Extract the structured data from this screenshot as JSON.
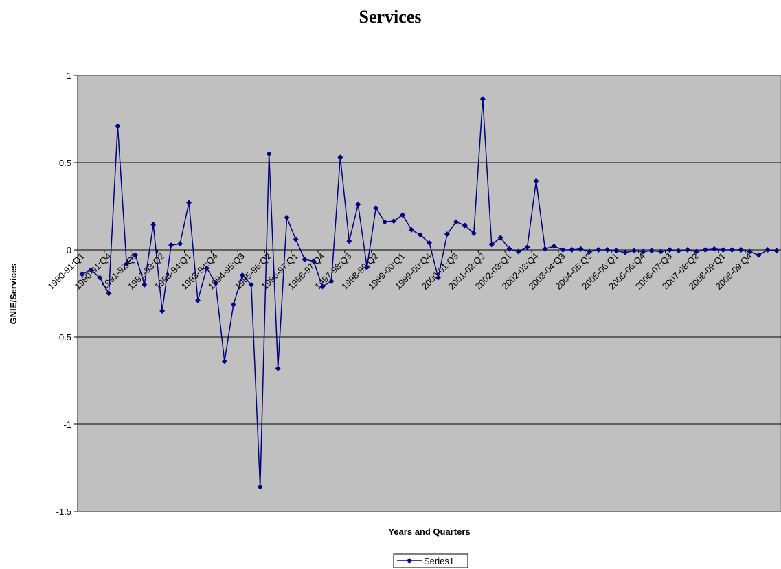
{
  "chart_data": {
    "type": "line",
    "title": "Services",
    "x_label": "Years and Quarters",
    "y_label": "GNIE/Services",
    "categories": [
      "1990-91:Q1",
      null,
      null,
      "1990-91:Q4",
      null,
      null,
      "1991-92:Q3",
      null,
      null,
      "1992-93:Q2",
      null,
      null,
      "1993-94:Q1",
      null,
      null,
      "1993-94:Q4",
      null,
      null,
      "1994-95:Q3",
      null,
      null,
      "1995-96:Q2",
      null,
      null,
      "1996-97:Q1",
      null,
      null,
      "1996-97:Q4",
      null,
      null,
      "1997-98:Q3",
      null,
      null,
      "1998-99:Q2",
      null,
      null,
      "1999-00:Q1",
      null,
      null,
      "1999-00:Q4",
      null,
      null,
      "2000-01:Q3",
      null,
      null,
      "2001-02:Q2",
      null,
      null,
      "2002-03:Q1",
      null,
      null,
      "2002-03:Q4",
      null,
      null,
      "2003-04:Q3",
      null,
      null,
      "2004-05:Q2",
      null,
      null,
      "2005-06:Q1",
      null,
      null,
      "2005-06:Q4",
      null,
      null,
      "2006-07:Q3",
      null,
      null,
      "2007-08:Q2",
      null,
      null,
      "2008-09:Q1",
      null,
      null,
      "2008-09:Q4",
      null,
      null,
      null
    ],
    "series": [
      {
        "name": "Series1",
        "color": "#000080",
        "values": [
          -0.14,
          -0.115,
          -0.16,
          -0.25,
          0.71,
          -0.08,
          -0.03,
          -0.2,
          0.145,
          -0.35,
          0.027,
          0.035,
          0.27,
          -0.29,
          -0.105,
          -0.19,
          -0.64,
          -0.315,
          -0.145,
          -0.2,
          -1.36,
          0.55,
          -0.68,
          0.185,
          0.06,
          -0.055,
          -0.065,
          -0.21,
          -0.18,
          0.53,
          0.05,
          0.26,
          -0.1,
          0.24,
          0.16,
          0.165,
          0.2,
          0.115,
          0.085,
          0.04,
          -0.16,
          0.09,
          0.16,
          0.14,
          0.095,
          0.865,
          0.03,
          0.07,
          0.005,
          -0.01,
          0.015,
          0.395,
          0.005,
          0.02,
          0,
          0,
          0.005,
          -0.01,
          0,
          0,
          -0.005,
          -0.015,
          -0.005,
          -0.01,
          -0.005,
          -0.01,
          0,
          -0.005,
          0,
          -0.01,
          0,
          0.005,
          0,
          0,
          0,
          -0.01,
          -0.03,
          0,
          -0.005
        ]
      }
    ],
    "ylim": [
      -1.5,
      1
    ],
    "yticks": [
      -1.5,
      -1,
      -0.5,
      0,
      0.5,
      1
    ],
    "grid": true,
    "legend": "bottom"
  }
}
